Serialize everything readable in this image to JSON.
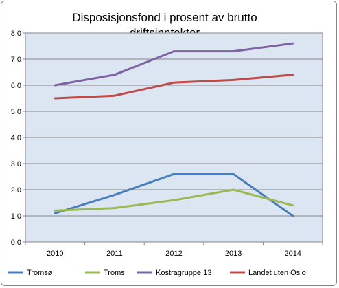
{
  "chart_data": {
    "type": "line",
    "title_lines": [
      "Disposisjonsfond i prosent av brutto",
      "driftsinntekter"
    ],
    "x": [
      "2010",
      "2011",
      "2012",
      "2013",
      "2014"
    ],
    "ylim": [
      0,
      8
    ],
    "yticks": [
      "0.0",
      "1.0",
      "2.0",
      "3.0",
      "4.0",
      "5.0",
      "6.0",
      "7.0",
      "8.0"
    ],
    "grid": true,
    "legend_position": "bottom",
    "series": [
      {
        "name": "Tromsø",
        "color": "#4a7ebb",
        "values": [
          1.1,
          1.8,
          2.6,
          2.6,
          1.0
        ]
      },
      {
        "name": "Troms",
        "color": "#98b954",
        "values": [
          1.2,
          1.3,
          1.6,
          2.0,
          1.4
        ]
      },
      {
        "name": "Kostragruppe 13",
        "color": "#7e62a1",
        "values": [
          6.0,
          6.4,
          7.3,
          7.3,
          7.6
        ]
      },
      {
        "name": "Landet uten Oslo",
        "color": "#be4b48",
        "values": [
          5.5,
          5.6,
          6.1,
          6.2,
          6.4
        ]
      }
    ],
    "plot_background": "#dce6f2"
  }
}
